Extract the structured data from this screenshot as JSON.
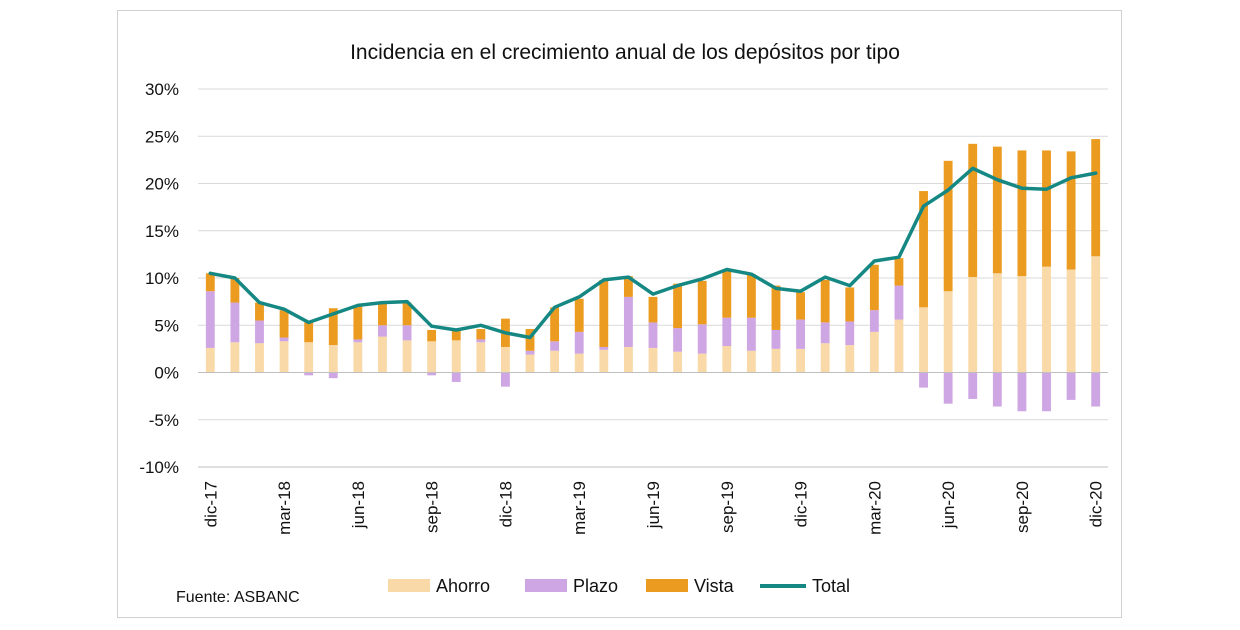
{
  "chart_data": {
    "type": "bar",
    "stacked": true,
    "title": "Incidencia en el crecimiento anual de los depósitos por tipo",
    "source": "Fuente: ASBANC",
    "ylim": [
      -10,
      30
    ],
    "yticks": [
      -10,
      -5,
      0,
      5,
      10,
      15,
      20,
      25,
      30
    ],
    "ytick_labels": [
      "-10%",
      "-5%",
      "0%",
      "5%",
      "10%",
      "15%",
      "20%",
      "25%",
      "30%"
    ],
    "grid": true,
    "legend_position": "bottom",
    "months": [
      "dic-17",
      "ene-18",
      "feb-18",
      "mar-18",
      "abr-18",
      "may-18",
      "jun-18",
      "jul-18",
      "ago-18",
      "sep-18",
      "oct-18",
      "nov-18",
      "dic-18",
      "ene-19",
      "feb-19",
      "mar-19",
      "abr-19",
      "may-19",
      "jun-19",
      "jul-19",
      "ago-19",
      "sep-19",
      "oct-19",
      "nov-19",
      "dic-19",
      "ene-20",
      "feb-20",
      "mar-20",
      "abr-20",
      "may-20",
      "jun-20",
      "jul-20",
      "ago-20",
      "sep-20",
      "oct-20",
      "nov-20",
      "dic-20"
    ],
    "x_tick_labels": [
      {
        "index": 0,
        "label": "dic-17"
      },
      {
        "index": 3,
        "label": "mar-18"
      },
      {
        "index": 6,
        "label": "jun-18"
      },
      {
        "index": 9,
        "label": "sep-18"
      },
      {
        "index": 12,
        "label": "dic-18"
      },
      {
        "index": 15,
        "label": "mar-19"
      },
      {
        "index": 18,
        "label": "jun-19"
      },
      {
        "index": 21,
        "label": "sep-19"
      },
      {
        "index": 24,
        "label": "dic-19"
      },
      {
        "index": 27,
        "label": "mar-20"
      },
      {
        "index": 30,
        "label": "jun-20"
      },
      {
        "index": 33,
        "label": "sep-20"
      },
      {
        "index": 36,
        "label": "dic-20"
      }
    ],
    "series": [
      {
        "name": "Ahorro",
        "color": "#f9d9a8",
        "kind": "bar",
        "values": [
          2.6,
          3.2,
          3.1,
          3.3,
          3.2,
          2.9,
          3.2,
          3.8,
          3.4,
          3.3,
          3.4,
          3.2,
          2.7,
          1.9,
          2.3,
          2.0,
          2.4,
          2.7,
          2.6,
          2.2,
          2.0,
          2.8,
          2.3,
          2.5,
          2.5,
          3.1,
          2.9,
          4.3,
          5.6,
          6.9,
          8.6,
          10.1,
          10.5,
          10.2,
          11.2,
          10.9,
          12.3
        ]
      },
      {
        "name": "Plazo",
        "color": "#cfa6e4",
        "kind": "bar",
        "values": [
          6.0,
          4.2,
          2.4,
          0.4,
          -0.3,
          -0.6,
          0.3,
          1.2,
          1.6,
          -0.3,
          -1.0,
          0.3,
          -1.5,
          0.4,
          1.0,
          2.3,
          0.3,
          5.3,
          2.7,
          2.5,
          3.1,
          3.0,
          3.5,
          2.0,
          3.1,
          2.2,
          2.5,
          2.3,
          3.6,
          -1.6,
          -3.3,
          -2.8,
          -3.6,
          -4.1,
          -4.1,
          -2.9,
          -3.6
        ]
      },
      {
        "name": "Vista",
        "color": "#eb9b1f",
        "kind": "bar",
        "values": [
          1.9,
          2.6,
          1.9,
          2.9,
          2.1,
          3.9,
          3.5,
          2.3,
          2.4,
          1.2,
          1.2,
          1.1,
          3.0,
          2.3,
          3.6,
          3.5,
          7.1,
          2.2,
          2.7,
          4.7,
          4.6,
          5.1,
          4.6,
          4.7,
          2.9,
          4.5,
          3.6,
          4.8,
          2.9,
          12.3,
          13.8,
          14.1,
          13.4,
          13.3,
          12.3,
          12.5,
          12.4
        ]
      },
      {
        "name": "Total",
        "color": "#168884",
        "kind": "line",
        "values": [
          10.5,
          10.0,
          7.4,
          6.7,
          5.3,
          6.2,
          7.1,
          7.4,
          7.5,
          4.9,
          4.5,
          5.0,
          4.2,
          3.7,
          6.9,
          8.0,
          9.8,
          10.1,
          8.3,
          9.2,
          9.9,
          10.9,
          10.4,
          8.9,
          8.6,
          10.1,
          9.2,
          11.8,
          12.2,
          17.6,
          19.3,
          21.6,
          20.4,
          19.5,
          19.4,
          20.6,
          21.1
        ]
      }
    ]
  }
}
